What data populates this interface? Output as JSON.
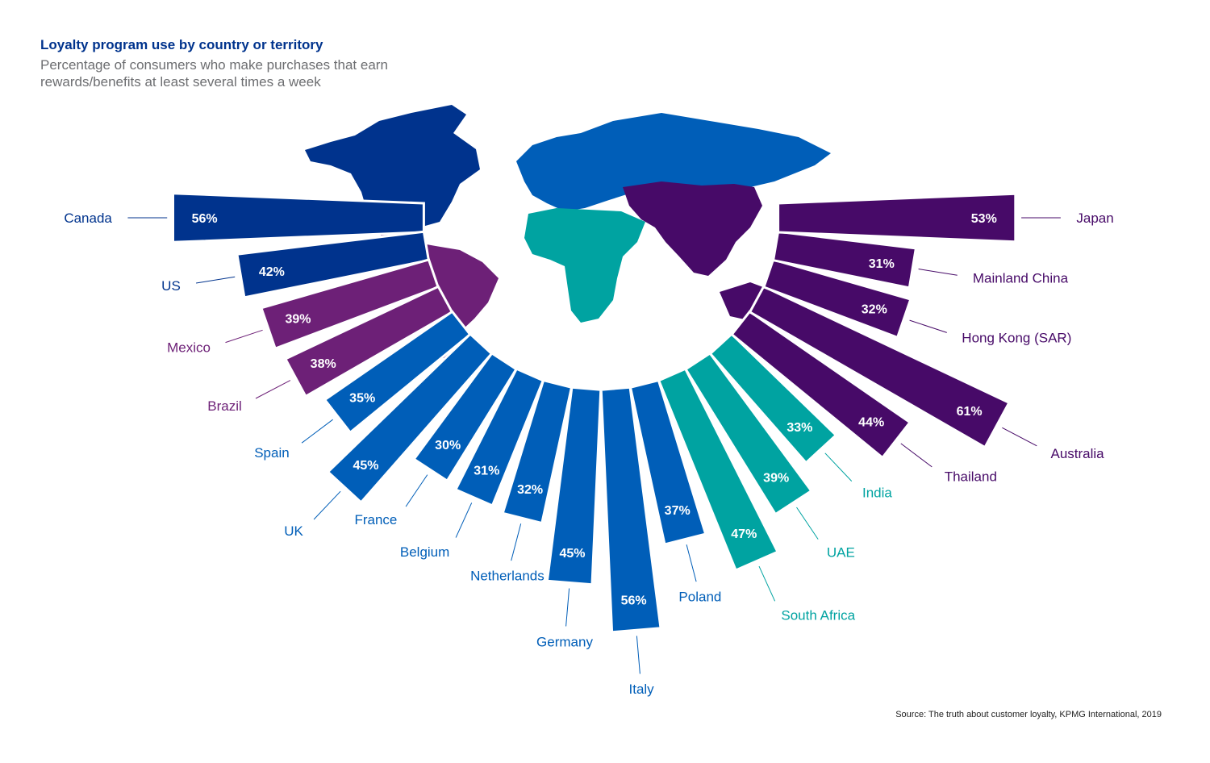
{
  "header": {
    "title": "Loyalty program use by country or territory",
    "subtitle": "Percentage of consumers who make purchases that earn rewards/benefits at least several times a week"
  },
  "footer": {
    "source": "Source: The truth about customer loyalty, KPMG International, 2019"
  },
  "colors": {
    "north_america": "#00338d",
    "latin_america": "#6d2077",
    "europe": "#005eb8",
    "mea": "#00a3a1",
    "asia_pacific": "#470a68"
  },
  "chart_data": {
    "type": "bar",
    "layout": "radial",
    "value_suffix": "%",
    "categories": [
      "Canada",
      "US",
      "Mexico",
      "Brazil",
      "Spain",
      "UK",
      "France",
      "Belgium",
      "Netherlands",
      "Germany",
      "Italy",
      "Poland",
      "South Africa",
      "UAE",
      "India",
      "Thailand",
      "Australia",
      "Hong Kong (SAR)",
      "Mainland China",
      "Japan"
    ],
    "values": [
      56,
      42,
      39,
      38,
      35,
      45,
      30,
      31,
      32,
      45,
      56,
      37,
      47,
      39,
      33,
      44,
      61,
      32,
      31,
      53
    ],
    "labels": [
      "56%",
      "42%",
      "39%",
      "38%",
      "35%",
      "45%",
      "30%",
      "31%",
      "32%",
      "45%",
      "56%",
      "37%",
      "47%",
      "39%",
      "33%",
      "44%",
      "61%",
      "32%",
      "31%",
      "53%"
    ],
    "regions": [
      "north_america",
      "north_america",
      "latin_america",
      "latin_america",
      "europe",
      "europe",
      "europe",
      "europe",
      "europe",
      "europe",
      "europe",
      "europe",
      "mea",
      "mea",
      "mea",
      "asia_pacific",
      "asia_pacific",
      "asia_pacific",
      "asia_pacific",
      "asia_pacific"
    ],
    "map_regions": [
      "North America",
      "Latin America",
      "Europe",
      "Middle East and Africa",
      "Asia Pacific"
    ]
  }
}
